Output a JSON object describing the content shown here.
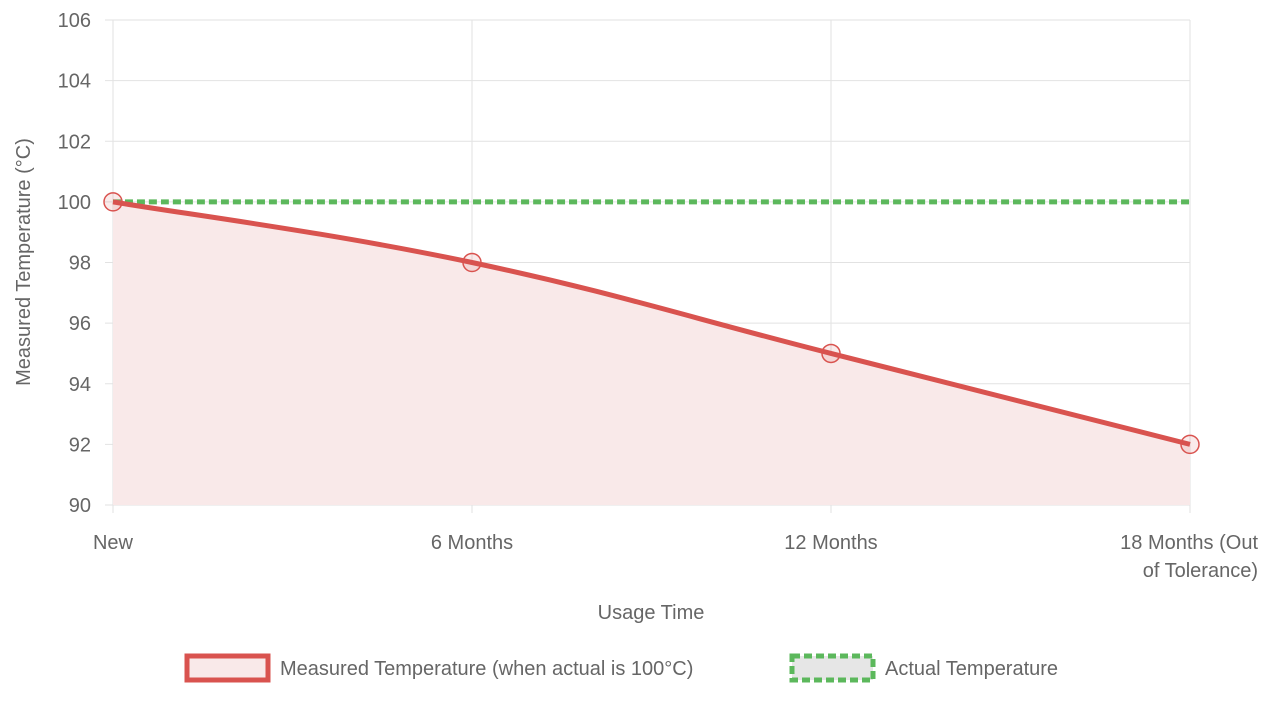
{
  "chart_data": {
    "type": "line",
    "categories": [
      "New",
      "6 Months",
      "12 Months",
      [
        "18 Months (Out",
        "of Tolerance)"
      ]
    ],
    "series": [
      {
        "name": "Measured Temperature (when actual is 100°C)",
        "values": [
          100,
          98,
          95,
          92
        ],
        "color": "#d9534f",
        "fill": "#f9e9e9",
        "style": "solid",
        "filled": true
      },
      {
        "name": "Actual Temperature",
        "values": [
          100,
          100,
          100,
          100
        ],
        "color": "#5cb85c",
        "fill": "#e6e6e6",
        "style": "dashed",
        "filled": false
      }
    ],
    "title": "",
    "xlabel": "Usage Time",
    "ylabel": "Measured Temperature (°C)",
    "ylim": [
      90,
      106
    ],
    "yticks": [
      90,
      92,
      94,
      96,
      98,
      100,
      102,
      104,
      106
    ],
    "grid": true,
    "legend": "bottom"
  }
}
